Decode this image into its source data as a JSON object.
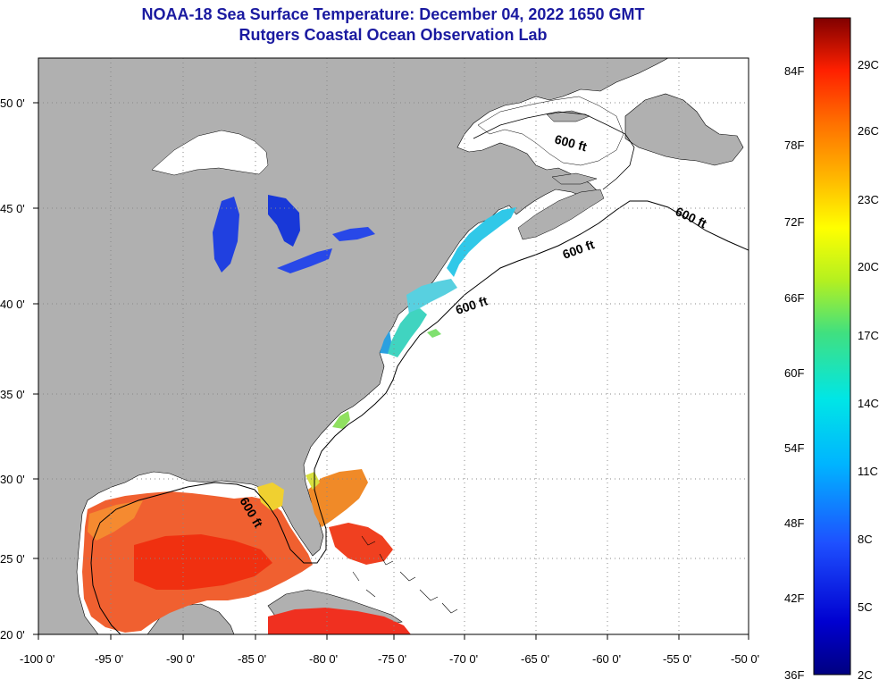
{
  "header": {
    "title": "NOAA-18 Sea Surface Temperature:  December 04, 2022 1650 GMT",
    "subtitle": "Rutgers Coastal Ocean Observation Lab"
  },
  "axes": {
    "lon_labels": [
      "-100 0'",
      "-95 0'",
      "-90 0'",
      "-85 0'",
      "-80 0'",
      "-75 0'",
      "-70 0'",
      "-65 0'",
      "-60 0'",
      "-55 0'",
      "-50 0'"
    ],
    "lat_labels": [
      "20 0'",
      "25 0'",
      "30 0'",
      "35 0'",
      "40 0'",
      "45 0'",
      "50 0'"
    ]
  },
  "contour_label": "600 ft",
  "colorbar": {
    "fahrenheit": [
      "36F",
      "42F",
      "48F",
      "54F",
      "60F",
      "66F",
      "72F",
      "78F",
      "84F"
    ],
    "celsius": [
      "2C",
      "5C",
      "8C",
      "11C",
      "14C",
      "17C",
      "20C",
      "23C",
      "26C",
      "29C"
    ]
  },
  "colors": {
    "land": "#b0b0b0",
    "ocean_nodata": "#ffffff",
    "title": "#1a1aa0"
  }
}
